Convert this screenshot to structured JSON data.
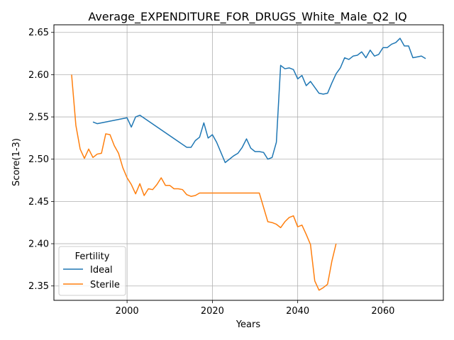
{
  "chart_data": {
    "type": "line",
    "title": "Average_EXPENDITURE_FOR_DRUGS_White_Male_Q2_IQ",
    "xlabel": "Years",
    "ylabel": "Score(1-3)",
    "xlim": [
      2072.5,
      2073.5
    ],
    "xticks": [
      2000,
      2020,
      2040,
      2060
    ],
    "ylim": [
      2.333,
      2.659
    ],
    "yticks": [
      2.35,
      2.4,
      2.45,
      2.5,
      2.55,
      2.6,
      2.65
    ],
    "grid": true,
    "legend": {
      "title": "Fertility",
      "position": "lower-left"
    },
    "series": [
      {
        "name": "Ideal",
        "color": "#1f77b4",
        "x": [
          1992,
          1993,
          2000,
          2001,
          2002,
          2003,
          2014,
          2015,
          2016,
          2017,
          2018,
          2019,
          2020,
          2021,
          2022,
          2023,
          2024,
          2025,
          2026,
          2027,
          2028,
          2029,
          2030,
          2031,
          2032,
          2033,
          2034,
          2035,
          2036,
          2037,
          2038,
          2039,
          2040,
          2041,
          2042,
          2043,
          2044,
          2045,
          2046,
          2047,
          2048,
          2049,
          2050,
          2051,
          2052,
          2053,
          2054,
          2055,
          2056,
          2057,
          2058,
          2059,
          2060,
          2061,
          2062,
          2063,
          2064,
          2065,
          2066,
          2067,
          2068,
          2069,
          2070
        ],
        "y": [
          2.544,
          2.542,
          2.549,
          2.538,
          2.55,
          2.552,
          2.514,
          2.514,
          2.522,
          2.526,
          2.543,
          2.525,
          2.529,
          2.52,
          2.508,
          2.496,
          2.5,
          2.504,
          2.507,
          2.514,
          2.524,
          2.513,
          2.509,
          2.509,
          2.508,
          2.5,
          2.502,
          2.52,
          2.611,
          2.607,
          2.608,
          2.606,
          2.595,
          2.599,
          2.587,
          2.592,
          2.585,
          2.578,
          2.577,
          2.578,
          2.59,
          2.601,
          2.608,
          2.62,
          2.618,
          2.622,
          2.623,
          2.627,
          2.62,
          2.629,
          2.622,
          2.624,
          2.632,
          2.632,
          2.636,
          2.638,
          2.643,
          2.634,
          2.634,
          2.62,
          2.621,
          2.622,
          2.619
        ]
      },
      {
        "name": "Sterile",
        "color": "#ff7f0e",
        "x": [
          1987,
          1988,
          1989,
          1990,
          1991,
          1992,
          1993,
          1994,
          1995,
          1996,
          1997,
          1998,
          1999,
          2000,
          2001,
          2002,
          2003,
          2004,
          2005,
          2006,
          2007,
          2008,
          2009,
          2010,
          2011,
          2012,
          2013,
          2014,
          2015,
          2016,
          2017,
          2018,
          2019,
          2020,
          2021,
          2022,
          2023,
          2024,
          2025,
          2026,
          2027,
          2028,
          2029,
          2030,
          2031,
          2032,
          2033,
          2034,
          2035,
          2036,
          2037,
          2038,
          2039,
          2040,
          2041,
          2042,
          2043,
          2044,
          2045,
          2046,
          2047,
          2048,
          2049
        ],
        "y": [
          2.6,
          2.54,
          2.512,
          2.501,
          2.512,
          2.502,
          2.506,
          2.507,
          2.53,
          2.529,
          2.516,
          2.507,
          2.49,
          2.478,
          2.47,
          2.459,
          2.471,
          2.457,
          2.465,
          2.464,
          2.47,
          2.478,
          2.469,
          2.469,
          2.465,
          2.465,
          2.464,
          2.458,
          2.456,
          2.457,
          2.46,
          2.46,
          2.46,
          2.46,
          2.46,
          2.46,
          2.46,
          2.46,
          2.46,
          2.46,
          2.46,
          2.46,
          2.46,
          2.46,
          2.46,
          2.443,
          2.426,
          2.425,
          2.423,
          2.419,
          2.426,
          2.431,
          2.433,
          2.42,
          2.422,
          2.411,
          2.399,
          2.356,
          2.345,
          2.348,
          2.352,
          2.379,
          2.4
        ]
      }
    ]
  }
}
